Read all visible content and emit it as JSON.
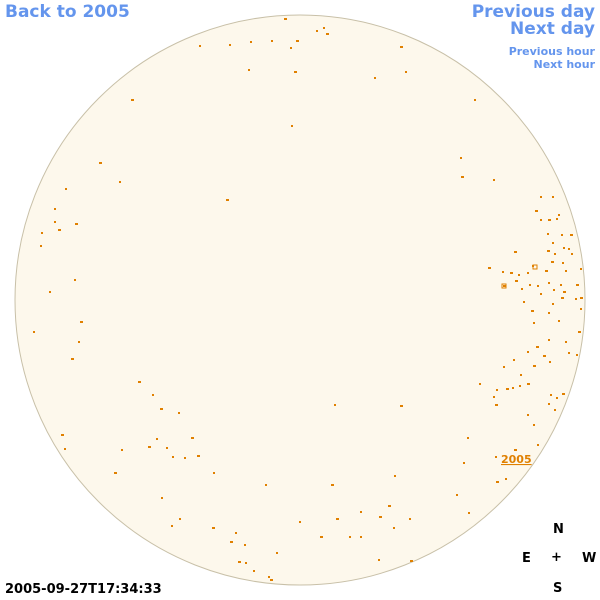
{
  "nav": {
    "back": "Back to 2005",
    "previous_day": "Previous day",
    "next_day": "Next day",
    "previous_hour": "Previous hour",
    "next_hour": "Next hour"
  },
  "sky": {
    "background_color": "#fdf8ec",
    "border_color": "#c8c0a8",
    "object_color": "#e08000",
    "object_label": "2005"
  },
  "compass": {
    "north": "N",
    "east": "E",
    "west": "W",
    "south": "S",
    "center": "+"
  },
  "timestamp": "2005-09-27T17:34:33"
}
